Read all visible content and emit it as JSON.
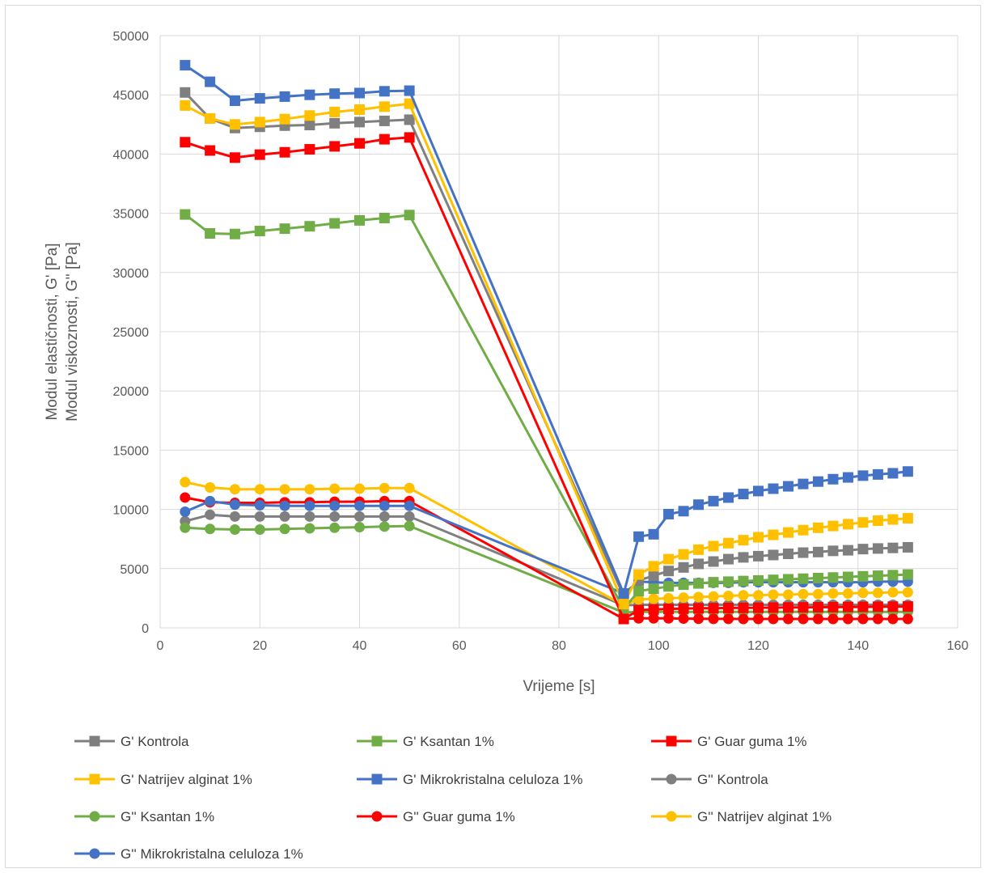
{
  "chart_data": {
    "type": "line",
    "title": "",
    "xlabel": "Vrijeme [s]",
    "ylabel_lines": [
      "Modul elastičnosti, G' [Pa]",
      "Modul viskoznosti, G'' [Pa]"
    ],
    "xlim": [
      0,
      160
    ],
    "ylim": [
      0,
      50000
    ],
    "xticks": [
      0,
      20,
      40,
      60,
      80,
      100,
      120,
      140,
      160
    ],
    "yticks": [
      0,
      5000,
      10000,
      15000,
      20000,
      25000,
      30000,
      35000,
      40000,
      45000,
      50000
    ],
    "grid": true,
    "legend_position": "bottom",
    "x_phase1": [
      5,
      10,
      15,
      20,
      25,
      30,
      35,
      40,
      45,
      50
    ],
    "x_phase2": [
      93,
      96,
      99,
      102,
      105,
      108,
      111,
      114,
      117,
      120,
      123,
      126,
      129,
      132,
      135,
      138,
      141,
      144,
      147,
      150
    ],
    "series": [
      {
        "name": "G' Kontrola",
        "color": "#7f7f7f",
        "marker": "square",
        "values_phase1": [
          45200,
          43000,
          42200,
          42300,
          42400,
          42450,
          42600,
          42700,
          42800,
          42900
        ],
        "values_phase2": [
          2700,
          4000,
          4400,
          4800,
          5100,
          5400,
          5600,
          5800,
          5950,
          6050,
          6150,
          6250,
          6350,
          6400,
          6500,
          6550,
          6650,
          6700,
          6750,
          6800
        ]
      },
      {
        "name": "G' Ksantan 1%",
        "color": "#70ad47",
        "marker": "square",
        "values_phase1": [
          34900,
          33300,
          33250,
          33500,
          33700,
          33900,
          34150,
          34400,
          34600,
          34850
        ],
        "values_phase2": [
          1600,
          3100,
          3300,
          3500,
          3650,
          3750,
          3850,
          3900,
          3950,
          4000,
          4050,
          4100,
          4150,
          4200,
          4250,
          4300,
          4350,
          4400,
          4450,
          4500
        ]
      },
      {
        "name": "G' Guar guma 1%",
        "color": "#ff0000",
        "marker": "square",
        "values_phase1": [
          41000,
          40300,
          39700,
          39950,
          40150,
          40400,
          40650,
          40900,
          41250,
          41400
        ],
        "values_phase2": [
          750,
          1500,
          1550,
          1600,
          1620,
          1650,
          1660,
          1680,
          1690,
          1700,
          1710,
          1720,
          1730,
          1740,
          1750,
          1760,
          1770,
          1780,
          1790,
          1800
        ]
      },
      {
        "name": "G' Natrijev alginat 1%",
        "color": "#ffc000",
        "marker": "square",
        "values_phase1": [
          44100,
          43000,
          42500,
          42700,
          42950,
          43250,
          43550,
          43750,
          44000,
          44250
        ],
        "values_phase2": [
          2000,
          4500,
          5200,
          5800,
          6200,
          6600,
          6900,
          7150,
          7400,
          7650,
          7850,
          8050,
          8250,
          8450,
          8600,
          8750,
          8900,
          9050,
          9150,
          9250
        ]
      },
      {
        "name": "G' Mikrokristalna celuloza 1%",
        "color": "#4472c4",
        "marker": "square",
        "values_phase1": [
          47500,
          46100,
          44500,
          44700,
          44850,
          45000,
          45100,
          45150,
          45300,
          45350
        ],
        "values_phase2": [
          2900,
          7700,
          7900,
          9600,
          9850,
          10400,
          10700,
          11000,
          11300,
          11550,
          11750,
          11950,
          12150,
          12350,
          12550,
          12700,
          12850,
          12950,
          13050,
          13200
        ]
      },
      {
        "name": "G'' Kontrola",
        "color": "#7f7f7f",
        "marker": "circle",
        "values_phase1": [
          9000,
          9550,
          9400,
          9400,
          9400,
          9400,
          9400,
          9400,
          9400,
          9400
        ],
        "values_phase2": [
          1900,
          1950,
          1950,
          1950,
          1950,
          1950,
          1950,
          1950,
          1950,
          1950,
          1950,
          1950,
          1950,
          1950,
          1950,
          1950,
          1950,
          1950,
          1950,
          1950
        ]
      },
      {
        "name": "G'' Ksantan 1%",
        "color": "#70ad47",
        "marker": "circle",
        "values_phase1": [
          8450,
          8350,
          8300,
          8300,
          8350,
          8400,
          8450,
          8500,
          8550,
          8600
        ],
        "values_phase2": [
          1300,
          1350,
          1350,
          1350,
          1350,
          1350,
          1350,
          1350,
          1350,
          1350,
          1350,
          1350,
          1350,
          1350,
          1350,
          1350,
          1350,
          1350,
          1350,
          1350
        ]
      },
      {
        "name": "G'' Guar guma 1%",
        "color": "#ff0000",
        "marker": "circle",
        "values_phase1": [
          11000,
          10600,
          10550,
          10550,
          10600,
          10600,
          10650,
          10650,
          10700,
          10700
        ],
        "values_phase2": [
          750,
          800,
          800,
          800,
          780,
          770,
          760,
          760,
          750,
          750,
          750,
          750,
          750,
          750,
          750,
          750,
          750,
          750,
          750,
          750
        ]
      },
      {
        "name": "G'' Natrijev alginat 1%",
        "color": "#ffc000",
        "marker": "circle",
        "values_phase1": [
          12300,
          11850,
          11700,
          11700,
          11700,
          11700,
          11750,
          11750,
          11800,
          11800
        ],
        "values_phase2": [
          1900,
          2400,
          2450,
          2500,
          2550,
          2600,
          2650,
          2700,
          2750,
          2750,
          2800,
          2800,
          2850,
          2850,
          2900,
          2900,
          2950,
          2950,
          3000,
          3000
        ]
      },
      {
        "name": "G'' Mikrokristalna celuloza 1%",
        "color": "#4472c4",
        "marker": "circle",
        "values_phase1": [
          9800,
          10700,
          10400,
          10350,
          10300,
          10300,
          10300,
          10300,
          10300,
          10300
        ],
        "values_phase2": [
          2900,
          3900,
          3850,
          3800,
          3800,
          3800,
          3800,
          3800,
          3850,
          3850,
          3850,
          3850,
          3850,
          3850,
          3850,
          3850,
          3850,
          3900,
          3900,
          3900
        ]
      }
    ]
  }
}
